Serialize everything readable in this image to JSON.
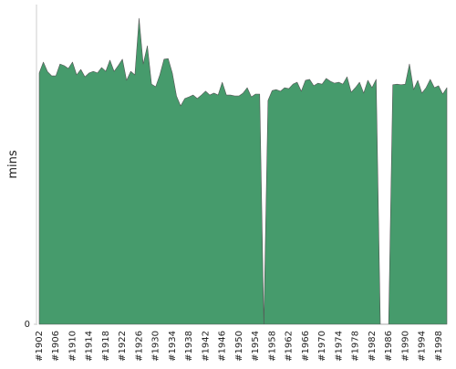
{
  "chart_data": {
    "type": "area",
    "y_label": "mins",
    "color": "#469b6c",
    "categories": [
      "#1902",
      null,
      null,
      null,
      "#1906",
      null,
      null,
      null,
      "#1910",
      null,
      null,
      null,
      "#1914",
      null,
      null,
      null,
      "#1918",
      null,
      null,
      null,
      "#1922",
      null,
      null,
      null,
      "#1926",
      null,
      null,
      null,
      "#1930",
      null,
      null,
      null,
      "#1934",
      null,
      null,
      null,
      "#1938",
      null,
      null,
      null,
      "#1942",
      null,
      null,
      null,
      "#1946",
      null,
      null,
      null,
      "#1950",
      null,
      null,
      null,
      "#1954",
      null,
      null,
      null,
      "#1958",
      null,
      null,
      null,
      "#1962",
      null,
      null,
      null,
      "#1966",
      null,
      null,
      null,
      "#1970",
      null,
      null,
      null,
      "#1974",
      null,
      null,
      null,
      "#1978",
      null,
      null,
      null,
      "#1982",
      null,
      null,
      null,
      "#1986",
      null,
      null,
      null,
      "#1990",
      null,
      null,
      null,
      "#1994",
      null,
      null,
      null,
      "#1998",
      null,
      null
    ],
    "values": [
      78.6,
      82,
      79,
      77.7,
      77.7,
      81.4,
      80.9,
      80,
      82,
      78,
      79.7,
      77.4,
      78.6,
      79.1,
      78.6,
      80.3,
      79.1,
      82.6,
      79.1,
      80.9,
      82.9,
      76.3,
      79.1,
      78,
      95.7,
      81.4,
      87.1,
      75.1,
      74.3,
      78,
      82.9,
      83.1,
      78.6,
      71.4,
      68.3,
      70.6,
      71.1,
      71.7,
      70.6,
      71.7,
      72.9,
      71.7,
      72.3,
      71.7,
      75.7,
      71.7,
      71.7,
      71.4,
      71.4,
      72.3,
      74,
      71.1,
      72,
      72,
      0,
      70,
      73.1,
      73.4,
      72.9,
      74,
      73.7,
      75.1,
      75.7,
      72.9,
      76.3,
      76.6,
      74.6,
      75.4,
      75.1,
      76.9,
      76,
      75.4,
      75.7,
      75.1,
      77.4,
      72.6,
      74,
      75.7,
      72.3,
      76.3,
      74,
      76.6,
      0,
      0,
      0,
      74.9,
      75.1,
      74.9,
      75.1,
      81.4,
      73.4,
      76.3,
      72.3,
      74,
      76.6,
      74,
      74.6,
      72,
      74
    ],
    "ylim": [
      0,
      100
    ],
    "yticks": [
      0
    ]
  }
}
